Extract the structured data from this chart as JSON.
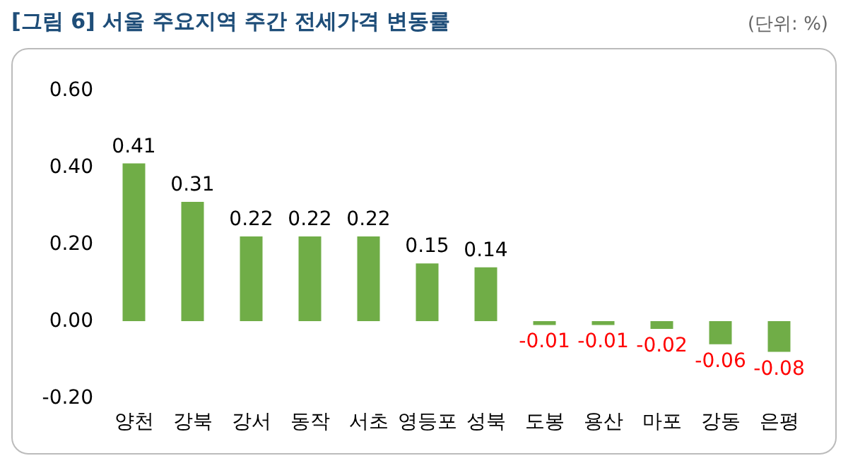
{
  "chart_data": {
    "type": "bar",
    "title": "[그림 6] 서울 주요지역 주간 전세가격 변동률",
    "annotations": [
      "(단위: %)"
    ],
    "categories": [
      "양천",
      "강북",
      "강서",
      "동작",
      "서초",
      "영등포",
      "성북",
      "도봉",
      "용산",
      "마포",
      "강동",
      "은평"
    ],
    "values": [
      0.41,
      0.31,
      0.22,
      0.22,
      0.22,
      0.15,
      0.14,
      -0.01,
      -0.01,
      -0.02,
      -0.06,
      -0.08
    ],
    "color": "#70ad47",
    "ylim": [
      -0.2,
      0.6
    ],
    "yticks": [
      {
        "value": -0.2,
        "label": "-0.20"
      },
      {
        "value": 0,
        "label": "0.00"
      },
      {
        "value": 0.2,
        "label": "0.20"
      },
      {
        "value": 0.4,
        "label": "0.40"
      },
      {
        "value": 0.6,
        "label": "0.60"
      }
    ],
    "grid": false,
    "data_labels": true
  }
}
